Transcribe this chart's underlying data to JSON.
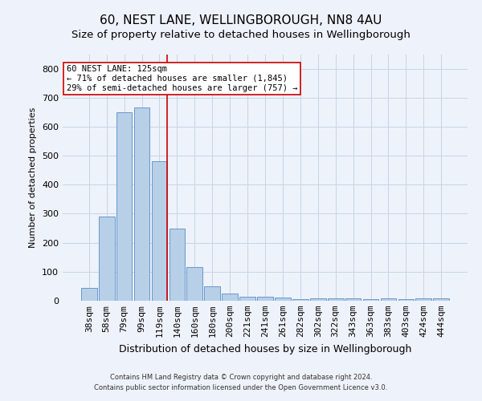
{
  "title1": "60, NEST LANE, WELLINGBOROUGH, NN8 4AU",
  "title2": "Size of property relative to detached houses in Wellingborough",
  "xlabel": "Distribution of detached houses by size in Wellingborough",
  "ylabel": "Number of detached properties",
  "categories": [
    "38sqm",
    "58sqm",
    "79sqm",
    "99sqm",
    "119sqm",
    "140sqm",
    "160sqm",
    "180sqm",
    "200sqm",
    "221sqm",
    "241sqm",
    "261sqm",
    "282sqm",
    "302sqm",
    "322sqm",
    "343sqm",
    "363sqm",
    "383sqm",
    "403sqm",
    "424sqm",
    "444sqm"
  ],
  "values": [
    45,
    290,
    650,
    665,
    480,
    250,
    115,
    50,
    25,
    15,
    15,
    10,
    5,
    8,
    8,
    8,
    5,
    8,
    5,
    8,
    8
  ],
  "bar_color": "#b8cfe8",
  "bar_edge_color": "#6699cc",
  "red_line_index": 4.45,
  "annotation_text": "60 NEST LANE: 125sqm\n← 71% of detached houses are smaller (1,845)\n29% of semi-detached houses are larger (757) →",
  "annotation_box_color": "#ffffff",
  "annotation_box_edge": "#cc0000",
  "ylim": [
    0,
    850
  ],
  "yticks": [
    0,
    100,
    200,
    300,
    400,
    500,
    600,
    700,
    800
  ],
  "footer1": "Contains HM Land Registry data © Crown copyright and database right 2024.",
  "footer2": "Contains public sector information licensed under the Open Government Licence v3.0.",
  "background_color": "#eef2fa",
  "grid_color": "#c8d4e8",
  "title1_fontsize": 11,
  "title2_fontsize": 9.5,
  "xlabel_fontsize": 9,
  "ylabel_fontsize": 8,
  "tick_fontsize": 8,
  "annotation_fontsize": 7.5,
  "footer_fontsize": 6
}
